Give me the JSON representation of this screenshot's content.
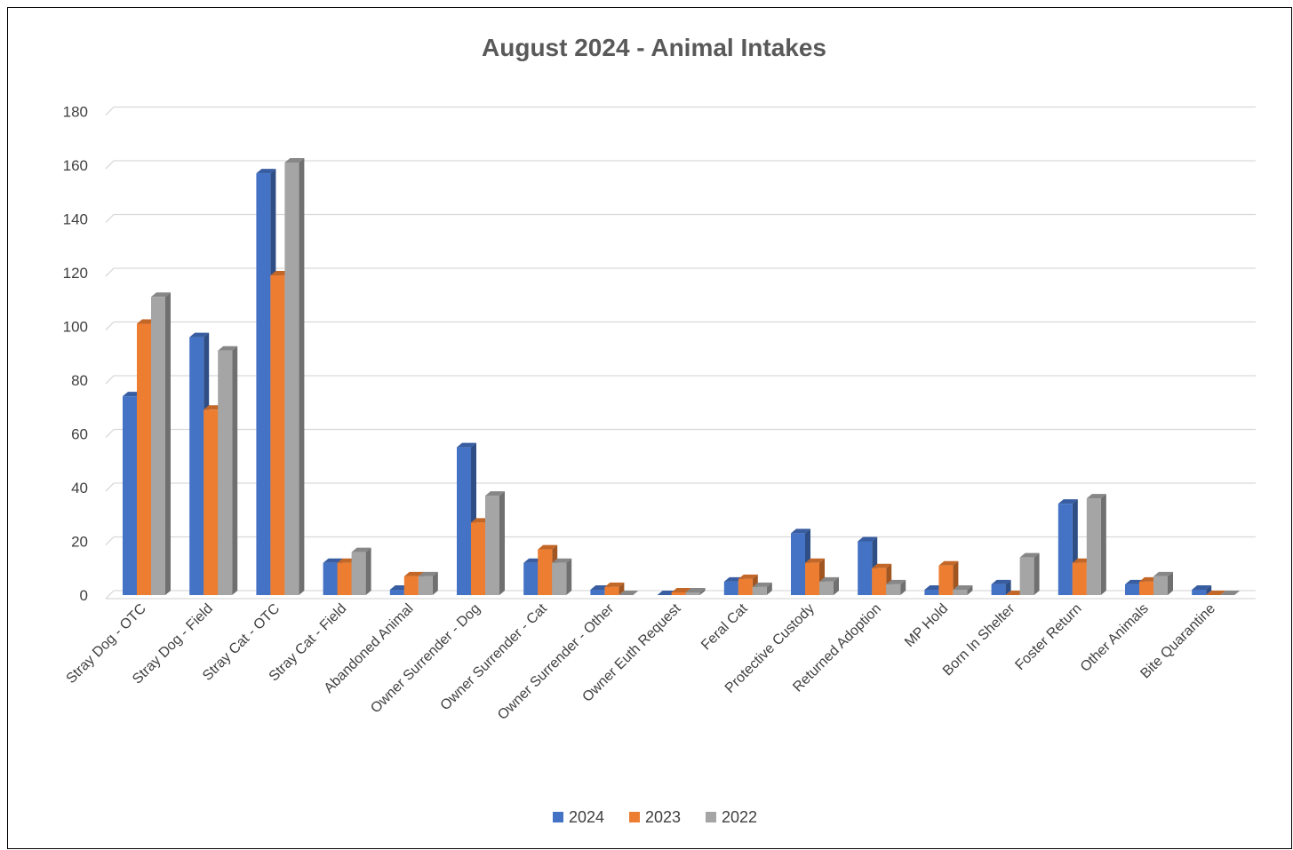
{
  "chart_data": {
    "type": "bar",
    "title": "August 2024 - Animal Intakes",
    "xlabel": "",
    "ylabel": "",
    "ylim": [
      0,
      180
    ],
    "yticks": [
      0,
      20,
      40,
      60,
      80,
      100,
      120,
      140,
      160,
      180
    ],
    "grid": true,
    "legend_position": "bottom",
    "style": "3d-clustered-column",
    "categories": [
      "Stray Dog - OTC",
      "Stray Dog - Field",
      "Stray Cat - OTC",
      "Stray Cat - Field",
      "Abandoned Animal",
      "Owner Surrender - Dog",
      "Owner Surrender - Cat",
      "Owner Surrender - Other",
      "Owner Euth Request",
      "Feral Cat",
      "Protective Custody",
      "Returned Adoption",
      "MP Hold",
      "Born In Shelter",
      "Foster Return",
      "Other Animals",
      "Bite Quarantine"
    ],
    "series": [
      {
        "name": "2024",
        "color": "#4472C4",
        "values": [
          74,
          96,
          157,
          12,
          2,
          55,
          12,
          2,
          0,
          5,
          23,
          20,
          2,
          4,
          34,
          4,
          2
        ]
      },
      {
        "name": "2023",
        "color": "#ED7D31",
        "values": [
          101,
          69,
          119,
          12,
          7,
          27,
          17,
          3,
          1,
          6,
          12,
          10,
          11,
          0,
          12,
          5,
          0
        ]
      },
      {
        "name": "2022",
        "color": "#A5A5A5",
        "values": [
          111,
          91,
          161,
          16,
          7,
          37,
          12,
          0,
          1,
          3,
          5,
          4,
          2,
          14,
          36,
          7,
          0
        ]
      }
    ]
  }
}
